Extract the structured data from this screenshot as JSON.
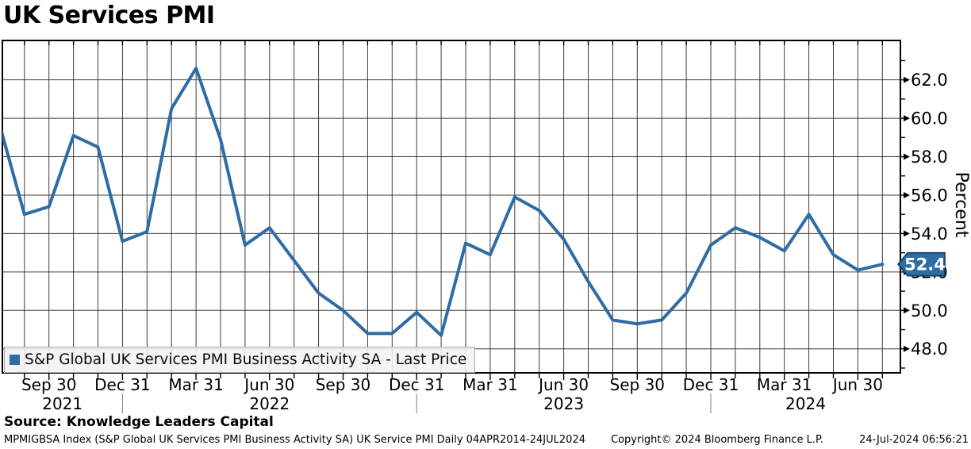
{
  "title": "UK Services PMI",
  "legend": {
    "swatch_color": "#2e6ca4",
    "label": "S&P Global UK Services PMI Business Activity SA - Last Price"
  },
  "source_line": "Source: Knowledge Leaders Capital",
  "footer": {
    "left": "MPMIGBSA Index (S&P Global UK Services PMI Business Activity SA) UK Service PMI  Daily 04APR2014-24JUL2024",
    "center": "Copyright© 2024 Bloomberg Finance L.P.",
    "right": "24-Jul-2024 06:56:21"
  },
  "chart_data": {
    "type": "line",
    "title": "UK Services PMI",
    "series_name": "S&P Global UK Services PMI Business Activity SA - Last Price",
    "ylabel": "Percent",
    "ylim": [
      46.75,
      64.05
    ],
    "grid": true,
    "line_color": "#2e6ca4",
    "y_major_ticks": [
      48.0,
      50.0,
      52.0,
      54.0,
      56.0,
      58.0,
      60.0,
      62.0
    ],
    "y_minor_ticks": [
      47.0,
      49.0,
      51.0,
      53.0,
      55.0,
      57.0,
      59.0,
      61.0,
      63.0
    ],
    "months": [
      "2021-07",
      "2021-08",
      "2021-09",
      "2021-10",
      "2021-11",
      "2021-12",
      "2022-01",
      "2022-02",
      "2022-03",
      "2022-04",
      "2022-05",
      "2022-06",
      "2022-07",
      "2022-08",
      "2022-09",
      "2022-10",
      "2022-11",
      "2022-12",
      "2023-01",
      "2023-02",
      "2023-03",
      "2023-04",
      "2023-05",
      "2023-06",
      "2023-07",
      "2023-08",
      "2023-09",
      "2023-10",
      "2023-11",
      "2023-12",
      "2024-01",
      "2024-02",
      "2024-03",
      "2024-04",
      "2024-05",
      "2024-06",
      "2024-07"
    ],
    "values": [
      59.6,
      55.0,
      55.4,
      59.1,
      58.5,
      53.6,
      54.1,
      60.5,
      62.6,
      58.9,
      53.4,
      54.3,
      52.6,
      50.9,
      50.0,
      48.8,
      48.8,
      49.9,
      48.7,
      53.5,
      52.9,
      55.9,
      55.2,
      53.7,
      51.5,
      49.5,
      49.3,
      49.5,
      50.9,
      53.4,
      54.3,
      53.8,
      53.1,
      55.0,
      52.9,
      52.1,
      52.4
    ],
    "x_quarter_ticks": [
      {
        "month_index": 2,
        "label": "Sep 30"
      },
      {
        "month_index": 5,
        "label": "Dec 31"
      },
      {
        "month_index": 8,
        "label": "Mar 31"
      },
      {
        "month_index": 11,
        "label": "Jun 30"
      },
      {
        "month_index": 14,
        "label": "Sep 30"
      },
      {
        "month_index": 17,
        "label": "Dec 31"
      },
      {
        "month_index": 20,
        "label": "Mar 31"
      },
      {
        "month_index": 23,
        "label": "Jun 30"
      },
      {
        "month_index": 26,
        "label": "Sep 30"
      },
      {
        "month_index": 29,
        "label": "Dec 31"
      },
      {
        "month_index": 32,
        "label": "Mar 31"
      },
      {
        "month_index": 35,
        "label": "Jun 30"
      }
    ],
    "year_labels": [
      {
        "label": "2021",
        "start": null,
        "end": 5
      },
      {
        "label": "2022",
        "start": 5,
        "end": 17
      },
      {
        "label": "2023",
        "start": 17,
        "end": 29
      },
      {
        "label": "2024",
        "start": 29,
        "end": null
      }
    ],
    "last_price_badge": {
      "value_label": "52.4",
      "fill": "#2e6ca4",
      "border": "#16375e",
      "text_color": "#ffffff"
    }
  }
}
